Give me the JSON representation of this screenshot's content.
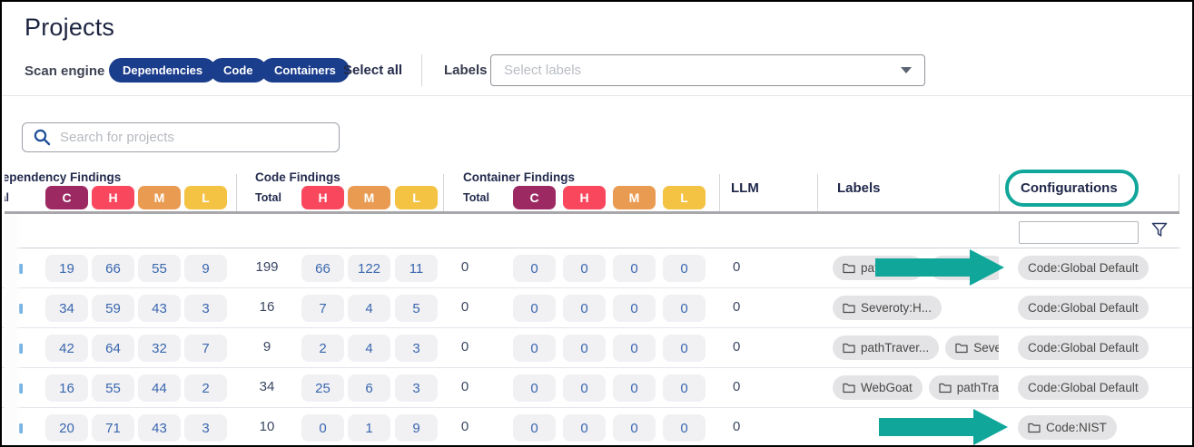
{
  "page": {
    "title": "Projects"
  },
  "toolbar": {
    "scan_engine_label": "Scan engine",
    "engines": {
      "dependencies": "Dependencies",
      "code": "Code",
      "containers": "Containers"
    },
    "select_all_label": "Select all",
    "labels_label": "Labels",
    "labels_placeholder": "Select labels"
  },
  "search": {
    "placeholder": "Search for projects"
  },
  "table": {
    "groups": {
      "dependency": "Dependency Findings",
      "code": "Code Findings",
      "container": "Container Findings"
    },
    "columns": {
      "total": "Total",
      "c": "C",
      "h": "H",
      "m": "M",
      "l": "L",
      "llm": "LLM",
      "labels": "Labels",
      "configurations": "Configurations"
    },
    "severity_colors": {
      "critical": "#9d2963",
      "high": "#f9485e",
      "medium": "#ea9b52",
      "low": "#f4c343"
    },
    "filter_input_value": "",
    "rows": [
      {
        "dependency": {
          "c": "19",
          "h": "66",
          "m": "55",
          "l": "9"
        },
        "code": {
          "total": "199",
          "h": "66",
          "m": "122",
          "l": "11"
        },
        "container": {
          "total": "0",
          "c": "0",
          "h": "0",
          "m": "0",
          "l": "0"
        },
        "llm": "0",
        "labels": [
          {
            "text": "path",
            "icon": true,
            "min_w": 100,
            "obscured": true
          },
          {
            "text": "",
            "icon": false,
            "min_w": 84,
            "obscured": true
          }
        ],
        "configurations": [
          {
            "text": "Code:Global Default",
            "icon": false
          }
        ]
      },
      {
        "dependency": {
          "c": "34",
          "h": "59",
          "m": "43",
          "l": "3"
        },
        "code": {
          "total": "16",
          "h": "7",
          "m": "4",
          "l": "5"
        },
        "container": {
          "total": "0",
          "c": "0",
          "h": "0",
          "m": "0",
          "l": "0"
        },
        "llm": "0",
        "labels": [
          {
            "text": "Severoty:H...",
            "icon": true
          }
        ],
        "configurations": [
          {
            "text": "Code:Global Default",
            "icon": false
          }
        ]
      },
      {
        "dependency": {
          "c": "42",
          "h": "64",
          "m": "32",
          "l": "7"
        },
        "code": {
          "total": "9",
          "h": "2",
          "m": "4",
          "l": "3"
        },
        "container": {
          "total": "0",
          "c": "0",
          "h": "0",
          "m": "0",
          "l": "0"
        },
        "llm": "0",
        "labels": [
          {
            "text": "pathTraver...",
            "icon": true
          },
          {
            "text": "Severoty",
            "icon": true
          }
        ],
        "configurations": [
          {
            "text": "Code:Global Default",
            "icon": false
          }
        ]
      },
      {
        "dependency": {
          "c": "16",
          "h": "55",
          "m": "44",
          "l": "2"
        },
        "code": {
          "total": "34",
          "h": "25",
          "m": "6",
          "l": "3"
        },
        "container": {
          "total": "0",
          "c": "0",
          "h": "0",
          "m": "0",
          "l": "0"
        },
        "llm": "0",
        "labels": [
          {
            "text": "WebGoat",
            "icon": true
          },
          {
            "text": "pathTraver..",
            "icon": true
          }
        ],
        "configurations": [
          {
            "text": "Code:Global Default",
            "icon": false
          }
        ]
      },
      {
        "dependency": {
          "c": "20",
          "h": "71",
          "m": "43",
          "l": "3"
        },
        "code": {
          "total": "10",
          "h": "0",
          "m": "1",
          "l": "9"
        },
        "container": {
          "total": "0",
          "c": "0",
          "h": "0",
          "m": "0",
          "l": "0"
        },
        "llm": "0",
        "labels": [],
        "configurations": [
          {
            "text": "Code:NIST",
            "icon": true
          }
        ]
      }
    ]
  },
  "annotations": {
    "color": "#10a79a",
    "highlighted_column": "Configurations",
    "arrow_rows": [
      1,
      5
    ]
  },
  "theme": {
    "pill_blue": "#1a3d8c"
  }
}
